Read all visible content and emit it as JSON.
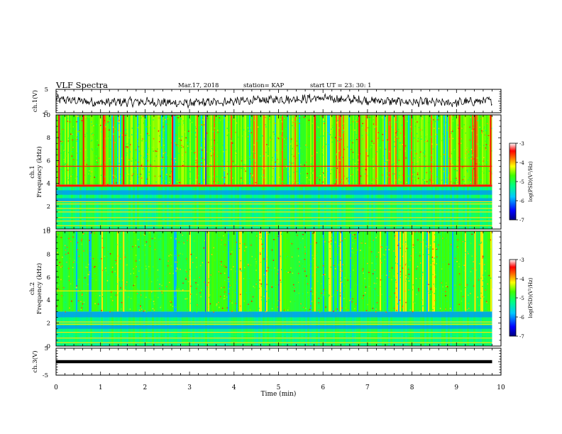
{
  "header": {
    "title": "VLF Spectra",
    "date": "Mar.17, 2018",
    "station": "station= KAP",
    "start": "start  UT  =   23: 30: 1"
  },
  "chart_data": [
    {
      "type": "line",
      "panel": "ch1-waveform",
      "ylabel": "ch.1(V)",
      "ylim": [
        -5,
        5
      ],
      "yticks": [
        "5",
        "-5"
      ],
      "xlim": [
        0,
        10
      ],
      "x_end": 9.8,
      "description_of_values": "noisy waveform fluctuating roughly between -3 and 3 V",
      "approx_envelope": [
        0.8,
        -0.6,
        -0.3,
        -1.0,
        -0.2,
        0.6,
        1.2,
        0.4,
        -0.3,
        -0.8,
        0.2
      ]
    },
    {
      "type": "heatmap",
      "panel": "ch1-spectrogram",
      "ylabel": "ch.1\nFrequency (kHz)",
      "ylabel_line1": "ch.1",
      "ylabel_line2": "Frequency (kHz)",
      "ylim": [
        0,
        10
      ],
      "yticks": [
        "0",
        "2",
        "4",
        "6",
        "8",
        "10"
      ],
      "xlim": [
        0,
        10
      ],
      "x_end": 9.8,
      "colorbar": {
        "label": "log(PSD)(V²/Hz)",
        "range": [
          -7,
          -3
        ],
        "ticks": [
          "-3",
          "-4",
          "-5",
          "-6",
          "-7"
        ]
      },
      "horizontal_lines_khz": [
        0.3,
        0.7,
        1.0,
        1.5,
        1.8,
        2.2,
        2.4,
        3.8,
        5.5
      ],
      "vertical_burst_times_min": [
        0.05,
        0.6,
        1.05,
        1.5,
        2.6,
        3.35,
        5.8,
        6.8,
        7.8,
        9.05,
        9.4,
        9.75
      ]
    },
    {
      "type": "heatmap",
      "panel": "ch2-spectrogram",
      "ylabel_line1": "ch.2",
      "ylabel_line2": "Frequency (kHz)",
      "ylim": [
        0,
        10
      ],
      "yticks": [
        "0",
        "2",
        "4",
        "6",
        "8",
        "10"
      ],
      "xlim": [
        0,
        10
      ],
      "x_end": 9.8,
      "colorbar": {
        "label": "log(PSD)(V²/Hz)",
        "range": [
          -7,
          -3
        ],
        "ticks": [
          "-3",
          "-4",
          "-5",
          "-6",
          "-7"
        ]
      },
      "horizontal_lines_khz": [
        0.3,
        0.7,
        1.2,
        1.9,
        2.1,
        4.8
      ],
      "vertical_burst_times_min": [
        1.5,
        3.35,
        5.8,
        7.8,
        9.4
      ]
    },
    {
      "type": "line",
      "panel": "ch3-waveform",
      "ylabel": "ch.3(V)",
      "ylim": [
        -5,
        5
      ],
      "yticks": [
        "5",
        "-5"
      ],
      "xlim": [
        0,
        10
      ],
      "x_end": 9.8,
      "constant_value": 0,
      "xlabel": "Time  (min)",
      "xticks": [
        "0",
        "1",
        "2",
        "3",
        "4",
        "5",
        "6",
        "7",
        "8",
        "9",
        "10"
      ]
    }
  ],
  "colors": {
    "axis": "#000000",
    "colormap": [
      "#000088",
      "#0000ff",
      "#00aaff",
      "#00ffaa",
      "#44ff00",
      "#ffff00",
      "#ff8800",
      "#ff0000",
      "#ffd0d0",
      "#ffffff"
    ]
  }
}
